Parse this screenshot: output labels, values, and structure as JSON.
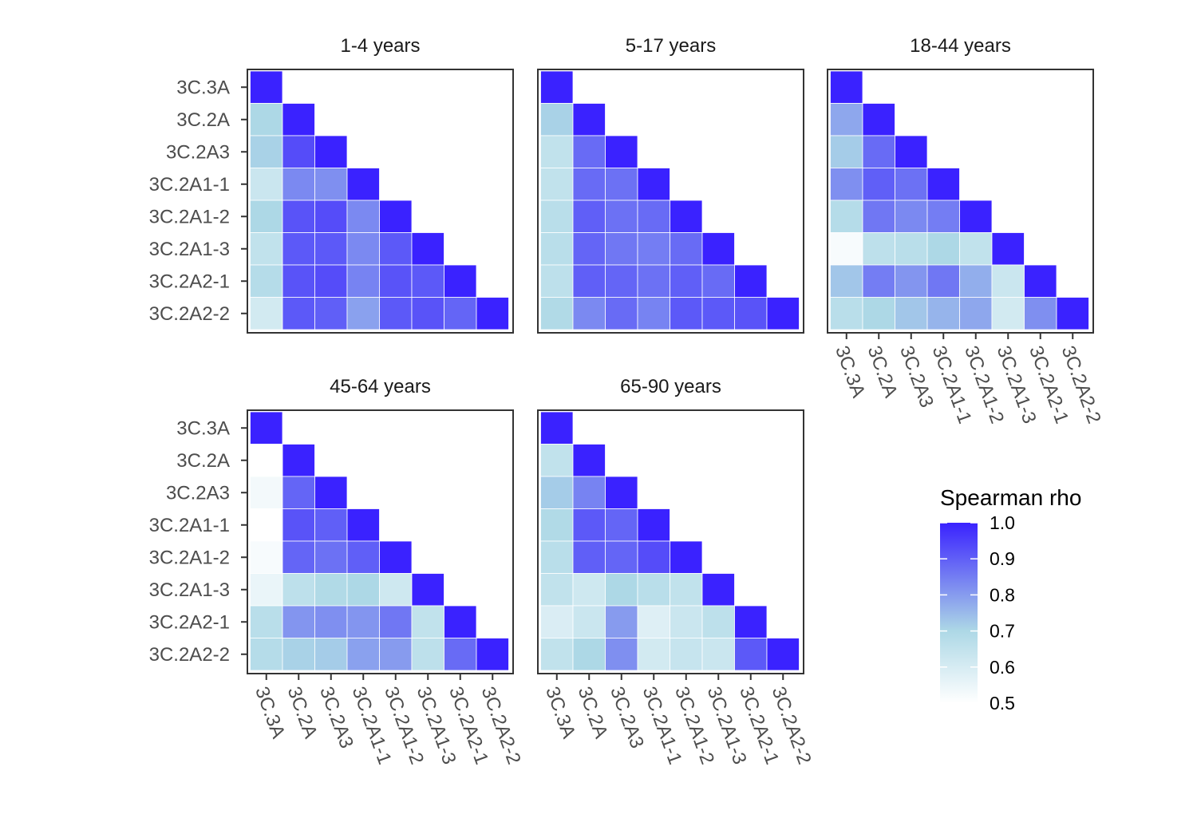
{
  "chart_data": {
    "type": "heatmap",
    "categories": [
      "3C.3A",
      "3C.2A",
      "3C.2A3",
      "3C.2A1-1",
      "3C.2A1-2",
      "3C.2A1-3",
      "3C.2A2-1",
      "3C.2A2-2"
    ],
    "colorscale": {
      "title": "Spearman rho",
      "range": [
        0.5,
        1.0
      ],
      "ticks": [
        "0.5",
        "0.6",
        "0.7",
        "0.8",
        "0.9",
        "1.0"
      ],
      "stops": [
        {
          "value": 0.5,
          "color": "#ffffff"
        },
        {
          "value": 0.7,
          "color": "#add8e6"
        },
        {
          "value": 1.0,
          "color": "#3a22ff"
        }
      ]
    },
    "facets": [
      {
        "title": "1-4 years",
        "matrix": [
          [
            1.0
          ],
          [
            0.7,
            1.0
          ],
          [
            0.71,
            0.93,
            1.0
          ],
          [
            0.63,
            0.83,
            0.82,
            1.0
          ],
          [
            0.7,
            0.92,
            0.93,
            0.83,
            1.0
          ],
          [
            0.65,
            0.91,
            0.91,
            0.83,
            0.91,
            1.0
          ],
          [
            0.68,
            0.92,
            0.93,
            0.84,
            0.92,
            0.91,
            1.0
          ],
          [
            0.61,
            0.91,
            0.9,
            0.79,
            0.91,
            0.92,
            0.89,
            1.0
          ]
        ]
      },
      {
        "title": "5-17 years",
        "matrix": [
          [
            1.0
          ],
          [
            0.71,
            1.0
          ],
          [
            0.65,
            0.88,
            1.0
          ],
          [
            0.65,
            0.88,
            0.87,
            1.0
          ],
          [
            0.67,
            0.9,
            0.87,
            0.88,
            1.0
          ],
          [
            0.67,
            0.89,
            0.86,
            0.85,
            0.88,
            1.0
          ],
          [
            0.66,
            0.9,
            0.89,
            0.87,
            0.9,
            0.88,
            1.0
          ],
          [
            0.69,
            0.83,
            0.88,
            0.84,
            0.91,
            0.91,
            0.92,
            1.0
          ]
        ]
      },
      {
        "title": "18-44 years",
        "matrix": [
          [
            1.0
          ],
          [
            0.78,
            1.0
          ],
          [
            0.72,
            0.88,
            1.0
          ],
          [
            0.82,
            0.9,
            0.87,
            1.0
          ],
          [
            0.68,
            0.86,
            0.83,
            0.85,
            1.0
          ],
          [
            0.52,
            0.66,
            0.67,
            0.7,
            0.65,
            1.0
          ],
          [
            0.73,
            0.85,
            0.81,
            0.86,
            0.77,
            0.63,
            1.0
          ],
          [
            0.67,
            0.7,
            0.73,
            0.76,
            0.78,
            0.61,
            0.82,
            1.0
          ]
        ]
      },
      {
        "title": "45-64 years",
        "matrix": [
          [
            1.0
          ],
          [
            0.5,
            1.0
          ],
          [
            0.53,
            0.89,
            1.0
          ],
          [
            0.5,
            0.92,
            0.9,
            1.0
          ],
          [
            0.52,
            0.89,
            0.87,
            0.9,
            1.0
          ],
          [
            0.55,
            0.66,
            0.69,
            0.7,
            0.62,
            1.0
          ],
          [
            0.67,
            0.81,
            0.82,
            0.81,
            0.86,
            0.65,
            1.0
          ],
          [
            0.68,
            0.71,
            0.72,
            0.79,
            0.8,
            0.66,
            0.88,
            1.0
          ]
        ]
      },
      {
        "title": "65-90 years",
        "matrix": [
          [
            1.0
          ],
          [
            0.65,
            1.0
          ],
          [
            0.72,
            0.84,
            1.0
          ],
          [
            0.69,
            0.91,
            0.89,
            1.0
          ],
          [
            0.67,
            0.9,
            0.89,
            0.93,
            1.0
          ],
          [
            0.65,
            0.62,
            0.7,
            0.67,
            0.65,
            1.0
          ],
          [
            0.59,
            0.63,
            0.8,
            0.58,
            0.63,
            0.66,
            1.0
          ],
          [
            0.65,
            0.7,
            0.82,
            0.61,
            0.64,
            0.63,
            0.91,
            1.0
          ]
        ]
      }
    ]
  }
}
